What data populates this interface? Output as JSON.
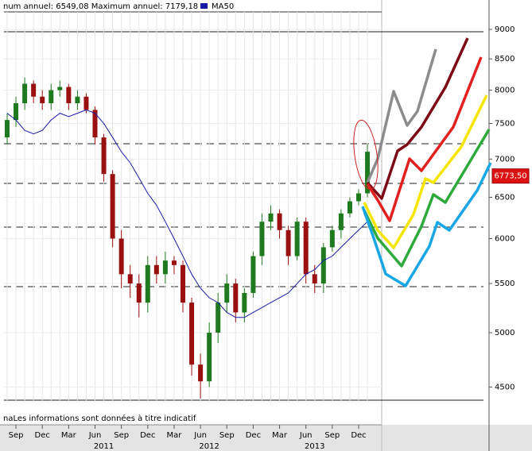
{
  "chart_data": {
    "type": "candlestick",
    "header_text": "num annuel: 6549,08 Maximum annuel: 7179,18",
    "footer_text": "naLes informations sont données à titre indicatif",
    "x": [
      "2010-08",
      "2010-09",
      "2010-10",
      "2010-11",
      "2010-12",
      "2011-01",
      "2011-02",
      "2011-03",
      "2011-04",
      "2011-05",
      "2011-06",
      "2011-07",
      "2011-08",
      "2011-09",
      "2011-10",
      "2011-11",
      "2011-12",
      "2012-01",
      "2012-02",
      "2012-03",
      "2012-04",
      "2012-05",
      "2012-06",
      "2012-07",
      "2012-08",
      "2012-09",
      "2012-10",
      "2012-11",
      "2012-12",
      "2013-01",
      "2013-02",
      "2013-03",
      "2013-04",
      "2013-05",
      "2013-06",
      "2013-07",
      "2013-08",
      "2013-09",
      "2013-10",
      "2013-11",
      "2013-12",
      "2014-01"
    ],
    "open": [
      7300,
      7550,
      7800,
      8100,
      7900,
      7800,
      8000,
      8050,
      7800,
      7900,
      7700,
      7300,
      6800,
      6000,
      5600,
      5500,
      5300,
      5700,
      5600,
      5750,
      5700,
      5300,
      4700,
      4550,
      5000,
      5300,
      5500,
      5200,
      5400,
      5800,
      6200,
      6300,
      6100,
      5800,
      6200,
      5600,
      5500,
      5900,
      6100,
      6300,
      6450,
      6550
    ],
    "high": [
      7650,
      7900,
      8200,
      8150,
      8000,
      8100,
      8150,
      8100,
      8000,
      7950,
      7750,
      7350,
      6850,
      6100,
      5700,
      5600,
      5800,
      5800,
      5850,
      5800,
      5750,
      5350,
      4800,
      5100,
      5400,
      5600,
      5550,
      5450,
      5850,
      6300,
      6400,
      6350,
      6150,
      6250,
      6250,
      5700,
      5950,
      6150,
      6350,
      6500,
      6600,
      7200
    ],
    "low": [
      7200,
      7450,
      7700,
      7800,
      7700,
      7700,
      7900,
      7700,
      7700,
      7650,
      7200,
      6700,
      5900,
      5450,
      5350,
      5150,
      5200,
      5500,
      5500,
      5600,
      5200,
      4600,
      4400,
      4500,
      4900,
      5200,
      5100,
      5100,
      5350,
      5700,
      6100,
      6000,
      5700,
      5750,
      5500,
      5400,
      5400,
      5850,
      6000,
      6250,
      6400,
      6500
    ],
    "close": [
      7550,
      7800,
      8100,
      7900,
      7800,
      8000,
      8050,
      7800,
      7900,
      7700,
      7300,
      6800,
      6000,
      5600,
      5500,
      5300,
      5700,
      5600,
      5750,
      5700,
      5300,
      4700,
      4550,
      5000,
      5300,
      5500,
      5200,
      5400,
      5800,
      6200,
      6300,
      6100,
      5800,
      6200,
      5600,
      5500,
      5900,
      6100,
      6300,
      6450,
      6550,
      7100
    ],
    "up_color": "#1f7a1f",
    "down_color": "#9a1010",
    "series": [
      {
        "name": "MA50",
        "color": "#1a1aa8",
        "values": [
          7650,
          7550,
          7400,
          7350,
          7400,
          7550,
          7650,
          7600,
          7650,
          7700,
          7650,
          7500,
          7300,
          7100,
          6950,
          6750,
          6550,
          6400,
          6200,
          6000,
          5800,
          5600,
          5450,
          5350,
          5300,
          5200,
          5150,
          5150,
          5200,
          5250,
          5300,
          5350,
          5400,
          5500,
          5600,
          5650,
          5750,
          5800,
          5900,
          6000,
          6100,
          6200
        ]
      }
    ],
    "current_value": {
      "value": 6773.5,
      "label": "6773,50"
    },
    "log_scale": true,
    "ylim": [
      4380,
      9310
    ],
    "yticks": [
      4500,
      5000,
      5500,
      6000,
      6500,
      7000,
      7500,
      8000,
      8500,
      9000
    ],
    "xticks": [
      {
        "value": "2010-09",
        "label": "Sep"
      },
      {
        "value": "2010-12",
        "label": "Dec"
      },
      {
        "value": "2011-03",
        "label": "Mar"
      },
      {
        "value": "2011-06",
        "label": "Jun"
      },
      {
        "value": "2011-09",
        "label": "Sep"
      },
      {
        "value": "2011-12",
        "label": "Dec"
      },
      {
        "value": "2012-03",
        "label": "Mar"
      },
      {
        "value": "2012-06",
        "label": "Jun"
      },
      {
        "value": "2012-09",
        "label": "Sep"
      },
      {
        "value": "2012-12",
        "label": "Dec"
      },
      {
        "value": "2013-03",
        "label": "Mar"
      },
      {
        "value": "2013-06",
        "label": "Jun"
      },
      {
        "value": "2013-09",
        "label": "Sep"
      },
      {
        "value": "2013-12",
        "label": "Dec"
      }
    ],
    "year_ticks": [
      {
        "value": "2011-07",
        "label": "2011"
      },
      {
        "value": "2012-07",
        "label": "2012"
      },
      {
        "value": "2013-07",
        "label": "2013"
      }
    ],
    "grid": true
  }
}
